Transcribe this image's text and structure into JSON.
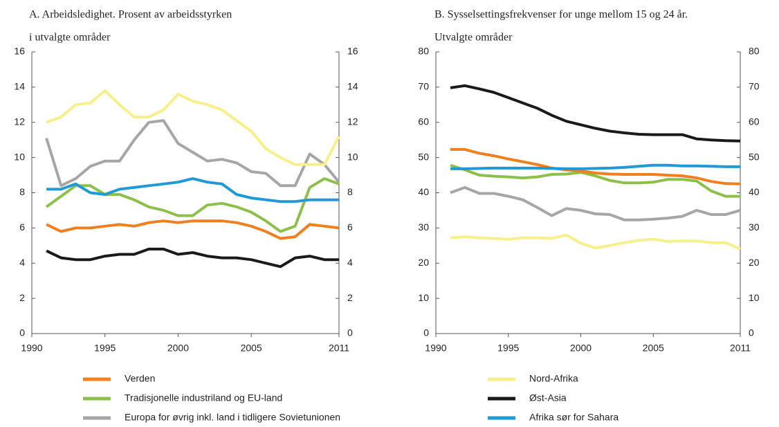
{
  "chart_data": [
    {
      "type": "line",
      "title": [
        "A.  Arbeidsledighet. Prosent av arbeidsstyrken",
        "i utvalgte områder"
      ],
      "x": [
        1991,
        1992,
        1993,
        1994,
        1995,
        1996,
        1997,
        1998,
        1999,
        2000,
        2001,
        2002,
        2003,
        2004,
        2005,
        2006,
        2007,
        2008,
        2009,
        2010,
        2011
      ],
      "xlim": [
        1990,
        2011
      ],
      "xticks": [
        1990,
        1995,
        2000,
        2005,
        2011
      ],
      "ylim": [
        0,
        16
      ],
      "yticks": [
        0,
        2,
        4,
        6,
        8,
        10,
        12,
        14,
        16
      ],
      "series": [
        {
          "name": "Verden",
          "color": "#f07f20",
          "values": [
            6.2,
            5.8,
            6.0,
            6.0,
            6.1,
            6.2,
            6.1,
            6.3,
            6.4,
            6.3,
            6.4,
            6.4,
            6.4,
            6.3,
            6.1,
            5.8,
            5.4,
            5.5,
            6.2,
            6.1,
            6.0
          ]
        },
        {
          "name": "Tradisjonelle industriland og EU-land",
          "color": "#8dc04b",
          "values": [
            7.2,
            7.8,
            8.4,
            8.4,
            7.9,
            7.9,
            7.6,
            7.2,
            7.0,
            6.7,
            6.7,
            7.3,
            7.4,
            7.2,
            6.9,
            6.4,
            5.8,
            6.1,
            8.3,
            8.8,
            8.5
          ]
        },
        {
          "name": "Europa for øvrig inkl. land i tidligere Sovietunionen",
          "color": "#a6a6a6",
          "values": [
            11.1,
            8.4,
            8.8,
            9.5,
            9.8,
            9.8,
            11.0,
            12.0,
            12.1,
            10.8,
            10.3,
            9.8,
            9.9,
            9.7,
            9.2,
            9.1,
            8.4,
            8.4,
            10.2,
            9.6,
            8.6
          ]
        },
        {
          "color": "#f7f08a",
          "values": [
            12.0,
            12.3,
            13.0,
            13.1,
            13.8,
            13.0,
            12.3,
            12.3,
            12.7,
            13.6,
            13.2,
            13.0,
            12.7,
            12.1,
            11.5,
            10.5,
            10.0,
            9.6,
            9.6,
            9.6,
            11.2
          ]
        },
        {
          "color": "#1a1a1a",
          "values": [
            4.7,
            4.3,
            4.2,
            4.2,
            4.4,
            4.5,
            4.5,
            4.8,
            4.8,
            4.5,
            4.6,
            4.4,
            4.3,
            4.3,
            4.2,
            4.0,
            3.8,
            4.3,
            4.4,
            4.2,
            4.2
          ]
        },
        {
          "color": "#1f9ad6",
          "values": [
            8.2,
            8.2,
            8.5,
            8.0,
            7.9,
            8.2,
            8.3,
            8.4,
            8.5,
            8.6,
            8.8,
            8.6,
            8.5,
            7.9,
            7.7,
            7.6,
            7.5,
            7.5,
            7.6,
            7.6,
            7.6
          ]
        }
      ]
    },
    {
      "type": "line",
      "title": [
        "B. Sysselsettingsfrekvenser for unge mellom 15 og 24 år.",
        "Utvalgte områder"
      ],
      "x": [
        1991,
        1992,
        1993,
        1994,
        1995,
        1996,
        1997,
        1998,
        1999,
        2000,
        2001,
        2002,
        2003,
        2004,
        2005,
        2006,
        2007,
        2008,
        2009,
        2010,
        2011
      ],
      "xlim": [
        1990,
        2011
      ],
      "xticks": [
        1990,
        1995,
        2000,
        2005,
        2011
      ],
      "ylim": [
        0,
        80
      ],
      "yticks": [
        0,
        10,
        20,
        30,
        40,
        50,
        60,
        70,
        80
      ],
      "series": [
        {
          "color": "#f07f20",
          "values": [
            52.3,
            52.3,
            51.2,
            50.5,
            49.6,
            48.8,
            48.0,
            47.0,
            46.5,
            46.2,
            45.6,
            45.3,
            45.2,
            45.2,
            45.2,
            45.0,
            44.8,
            44.2,
            43.2,
            42.6,
            42.5
          ]
        },
        {
          "color": "#8dc04b",
          "values": [
            47.8,
            46.5,
            45.0,
            44.7,
            44.5,
            44.2,
            44.5,
            45.2,
            45.3,
            45.8,
            44.8,
            43.5,
            42.8,
            42.8,
            43.0,
            43.8,
            43.8,
            43.3,
            40.5,
            39.0,
            39.0
          ]
        },
        {
          "color": "#a6a6a6",
          "values": [
            40.0,
            41.5,
            39.8,
            39.8,
            39.0,
            38.0,
            35.8,
            33.5,
            35.5,
            35.0,
            34.0,
            33.8,
            32.3,
            32.3,
            32.5,
            32.8,
            33.3,
            35.0,
            33.8,
            33.8,
            35.0
          ]
        },
        {
          "name": "Nord-Afrika",
          "color": "#f7f08a",
          "values": [
            27.2,
            27.5,
            27.2,
            27.0,
            26.8,
            27.2,
            27.2,
            27.0,
            28.0,
            25.7,
            24.3,
            25.0,
            25.8,
            26.5,
            26.8,
            26.2,
            26.3,
            26.3,
            25.8,
            25.8,
            24.0
          ]
        },
        {
          "name": "Øst-Asia",
          "color": "#1a1a1a",
          "values": [
            69.8,
            70.4,
            69.5,
            68.5,
            67.0,
            65.5,
            64.0,
            62.0,
            60.3,
            59.3,
            58.3,
            57.5,
            57.0,
            56.6,
            56.5,
            56.5,
            56.5,
            55.3,
            55.0,
            54.8,
            54.7
          ]
        },
        {
          "name": "Afrika sør for Sahara",
          "color": "#1f9ad6",
          "values": [
            46.8,
            46.8,
            46.9,
            47.0,
            47.0,
            47.0,
            47.0,
            46.9,
            46.8,
            46.8,
            46.9,
            47.0,
            47.2,
            47.5,
            47.8,
            47.8,
            47.6,
            47.6,
            47.5,
            47.4,
            47.4
          ]
        }
      ]
    }
  ]
}
